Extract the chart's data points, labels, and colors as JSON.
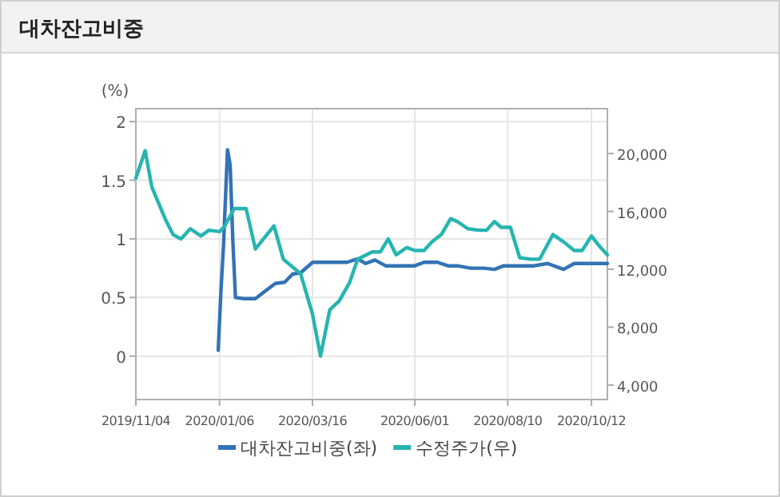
{
  "chart_data": {
    "type": "line",
    "title": "대차잔고비중",
    "ylabel": "(%)",
    "xlim": [
      "2019-11-04",
      "2020-10-24"
    ],
    "xticks": [
      {
        "value": "2019-11-04",
        "label": "2019/11/04"
      },
      {
        "value": "2020-01-06",
        "label": "2020/01/06"
      },
      {
        "value": "2020-03-16",
        "label": "2020/03/16"
      },
      {
        "value": "2020-06-01",
        "label": "2020/06/01"
      },
      {
        "value": "2020-08-10",
        "label": "2020/08/10"
      },
      {
        "value": "2020-10-12",
        "label": "2020/10/12"
      }
    ],
    "ylim": [
      -0.37,
      2.11
    ],
    "yticks": [
      0,
      0.5,
      1,
      1.5,
      2
    ],
    "y2lim": [
      3000,
      23100
    ],
    "y2ticks": [
      {
        "value": 4000,
        "label": "4,000"
      },
      {
        "value": 8000,
        "label": "8,000"
      },
      {
        "value": 12000,
        "label": "12,000"
      },
      {
        "value": 16000,
        "label": "16,000"
      },
      {
        "value": 20000,
        "label": "20,000"
      }
    ],
    "grid": true,
    "legend": "bottom",
    "line_style": "solid",
    "marker": "none",
    "series": [
      {
        "name": "대차잔고비중(좌)",
        "color": "#3373b5",
        "x": [
          "2020-01-05",
          "2020-01-07",
          "2020-01-09",
          "2020-01-12",
          "2020-01-14",
          "2020-01-16",
          "2020-01-18",
          "2020-01-24",
          "2020-02-02",
          "2020-02-10",
          "2020-02-17",
          "2020-02-24",
          "2020-03-01",
          "2020-03-07",
          "2020-03-16",
          "2020-04-01",
          "2020-04-11",
          "2020-04-19",
          "2020-04-25",
          "2020-05-02",
          "2020-05-10",
          "2020-05-22",
          "2020-06-01",
          "2020-06-08",
          "2020-06-18",
          "2020-06-26",
          "2020-07-03",
          "2020-07-13",
          "2020-07-23",
          "2020-07-31",
          "2020-08-07",
          "2020-08-30",
          "2020-09-09",
          "2020-09-21",
          "2020-09-29",
          "2020-10-24"
        ],
        "values": [
          0.05,
          0.54,
          0.95,
          1.76,
          1.63,
          0.99,
          0.5,
          0.49,
          0.49,
          0.56,
          0.62,
          0.63,
          0.7,
          0.71,
          0.8,
          0.8,
          0.8,
          0.83,
          0.79,
          0.82,
          0.77,
          0.77,
          0.77,
          0.8,
          0.8,
          0.77,
          0.77,
          0.75,
          0.75,
          0.74,
          0.77,
          0.77,
          0.79,
          0.74,
          0.79,
          0.79
        ]
      },
      {
        "name": "수정주가(우)",
        "color": "#26b5b0",
        "axis": "y2",
        "x": [
          "2019-11-04",
          "2019-11-11",
          "2019-11-16",
          "2019-11-26",
          "2019-12-02",
          "2019-12-08",
          "2019-12-15",
          "2019-12-23",
          "2019-12-29",
          "2020-01-06",
          "2020-01-10",
          "2020-01-17",
          "2020-01-26",
          "2020-02-02",
          "2020-02-16",
          "2020-02-23",
          "2020-03-07",
          "2020-03-16",
          "2020-03-22",
          "2020-03-29",
          "2020-04-05",
          "2020-04-13",
          "2020-04-19",
          "2020-04-30",
          "2020-05-06",
          "2020-05-12",
          "2020-05-18",
          "2020-05-26",
          "2020-06-01",
          "2020-06-08",
          "2020-06-14",
          "2020-06-21",
          "2020-06-28",
          "2020-07-03",
          "2020-07-11",
          "2020-07-19",
          "2020-07-25",
          "2020-07-31",
          "2020-08-05",
          "2020-08-12",
          "2020-08-19",
          "2020-08-27",
          "2020-09-03",
          "2020-09-13",
          "2020-09-21",
          "2020-09-29",
          "2020-10-05",
          "2020-10-12",
          "2020-10-18",
          "2020-10-24"
        ],
        "values": [
          18300,
          20200,
          17700,
          15500,
          14400,
          14100,
          14800,
          14300,
          14700,
          14600,
          15000,
          16200,
          16200,
          13400,
          15000,
          12700,
          11700,
          8900,
          6000,
          9200,
          9800,
          11100,
          12700,
          13200,
          13200,
          14100,
          13000,
          13500,
          13300,
          13300,
          13900,
          14400,
          15500,
          15300,
          14800,
          14700,
          14700,
          15300,
          14900,
          14900,
          12800,
          12700,
          12700,
          14400,
          13900,
          13300,
          13300,
          14300,
          13600,
          13000
        ]
      }
    ]
  }
}
